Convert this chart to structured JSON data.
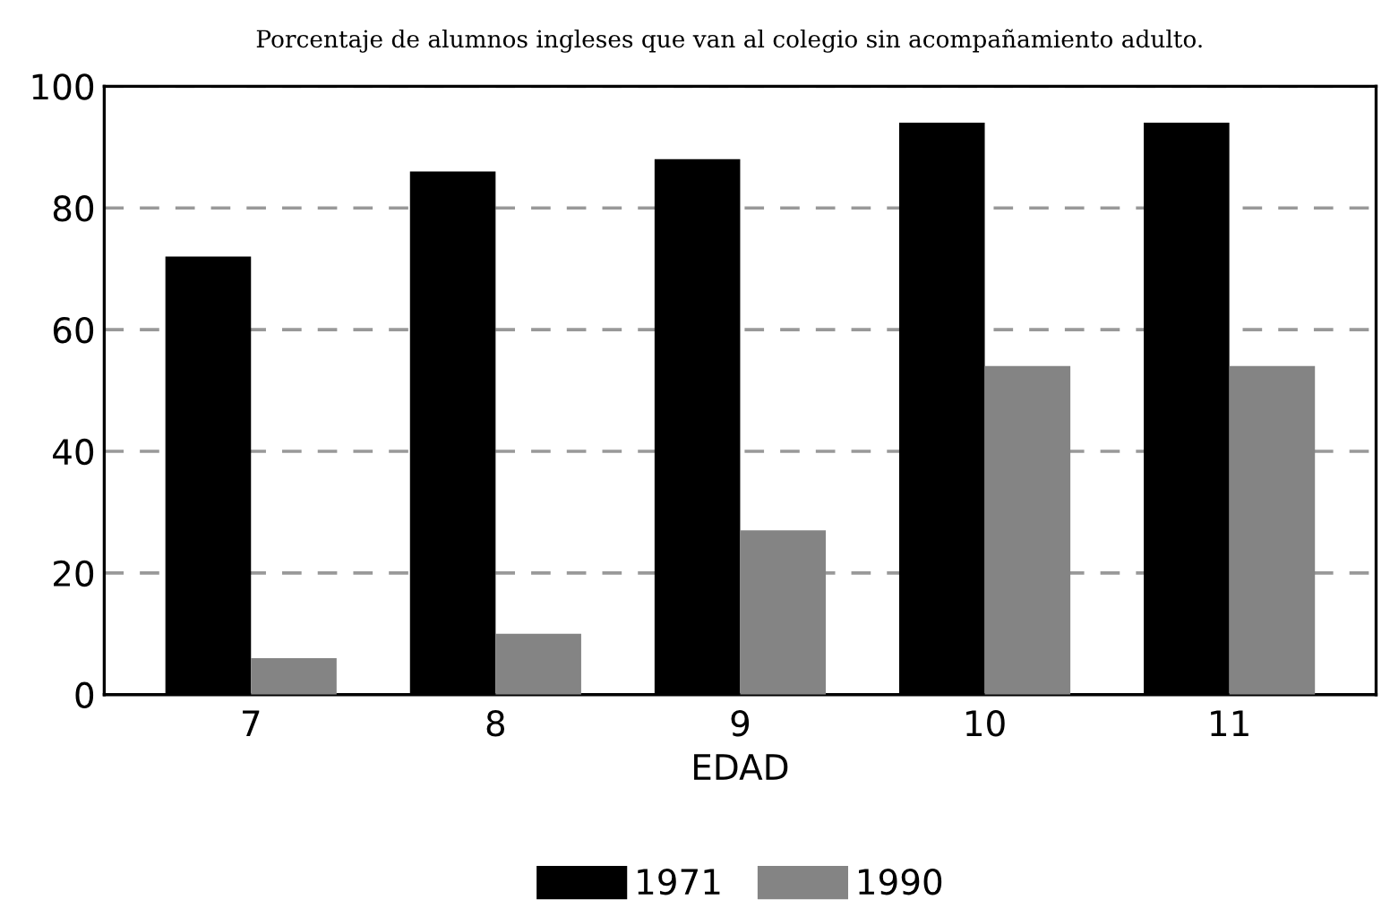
{
  "chart_data": {
    "type": "bar",
    "title": "Porcentaje de alumnos ingleses que van al colegio sin acompañamiento adulto.",
    "xlabel": "EDAD",
    "categories": [
      "7",
      "8",
      "9",
      "10",
      "11"
    ],
    "series": [
      {
        "name": "1971",
        "color": "#000000",
        "values": [
          72,
          86,
          88,
          94,
          94
        ]
      },
      {
        "name": "1990",
        "color": "#848484",
        "values": [
          6,
          10,
          27,
          54,
          54
        ]
      }
    ],
    "ylim": [
      0,
      100
    ],
    "yticks": [
      0,
      20,
      40,
      60,
      80,
      100
    ],
    "grid": "y",
    "legend": "bottom"
  }
}
